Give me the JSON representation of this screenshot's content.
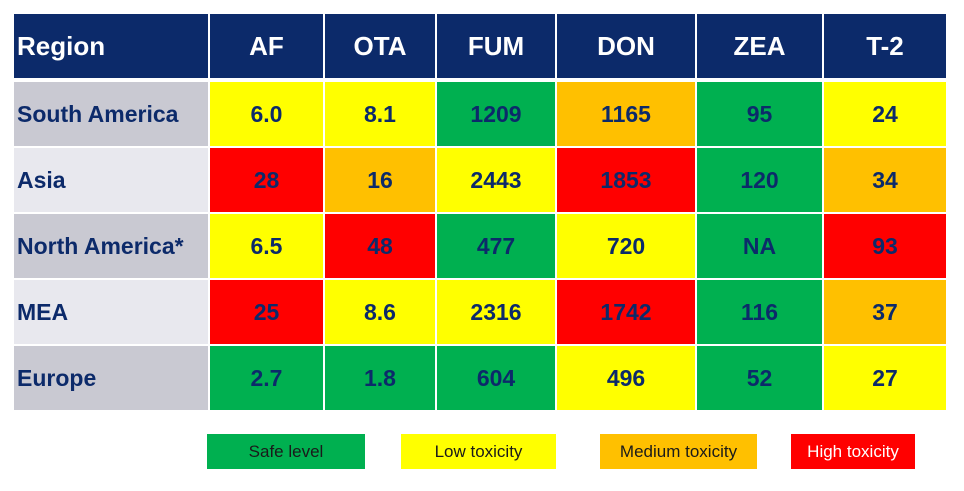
{
  "colors": {
    "header_bg": "#0c2a6a",
    "label_bg_odd": "#c9c9d2",
    "label_bg_even": "#e8e8ee",
    "safe": "#00b050",
    "low": "#ffff00",
    "medium": "#ffc000",
    "high": "#ff0000"
  },
  "chart_data": {
    "type": "table",
    "columns": [
      "Region",
      "AF",
      "OTA",
      "FUM",
      "DON",
      "ZEA",
      "T-2"
    ],
    "rows": [
      {
        "region": "South America",
        "cells": [
          {
            "value": "6.0",
            "level": "low"
          },
          {
            "value": "8.1",
            "level": "low"
          },
          {
            "value": "1209",
            "level": "safe"
          },
          {
            "value": "1165",
            "level": "medium"
          },
          {
            "value": "95",
            "level": "safe"
          },
          {
            "value": "24",
            "level": "low"
          }
        ]
      },
      {
        "region": "Asia",
        "cells": [
          {
            "value": "28",
            "level": "high"
          },
          {
            "value": "16",
            "level": "medium"
          },
          {
            "value": "2443",
            "level": "low"
          },
          {
            "value": "1853",
            "level": "high"
          },
          {
            "value": "120",
            "level": "safe"
          },
          {
            "value": "34",
            "level": "medium"
          }
        ]
      },
      {
        "region": "North America*",
        "cells": [
          {
            "value": "6.5",
            "level": "low"
          },
          {
            "value": "48",
            "level": "high"
          },
          {
            "value": "477",
            "level": "safe"
          },
          {
            "value": "720",
            "level": "low"
          },
          {
            "value": "NA",
            "level": "safe"
          },
          {
            "value": "93",
            "level": "high"
          }
        ]
      },
      {
        "region": "MEA",
        "cells": [
          {
            "value": "25",
            "level": "high"
          },
          {
            "value": "8.6",
            "level": "low"
          },
          {
            "value": "2316",
            "level": "low"
          },
          {
            "value": "1742",
            "level": "high"
          },
          {
            "value": "116",
            "level": "safe"
          },
          {
            "value": "37",
            "level": "medium"
          }
        ]
      },
      {
        "region": "Europe",
        "cells": [
          {
            "value": "2.7",
            "level": "safe"
          },
          {
            "value": "1.8",
            "level": "safe"
          },
          {
            "value": "604",
            "level": "safe"
          },
          {
            "value": "496",
            "level": "low"
          },
          {
            "value": "52",
            "level": "safe"
          },
          {
            "value": "27",
            "level": "low"
          }
        ]
      }
    ],
    "legend": [
      {
        "label": "Safe level",
        "level": "safe",
        "text_color": "#0c2a6a"
      },
      {
        "label": "Low toxicity",
        "level": "low",
        "text_color": "#0c2a6a"
      },
      {
        "label": "Medium toxicity",
        "level": "medium",
        "text_color": "#0c2a6a"
      },
      {
        "label": "High toxicity",
        "level": "high",
        "text_color": "#0c2a6a"
      }
    ]
  }
}
